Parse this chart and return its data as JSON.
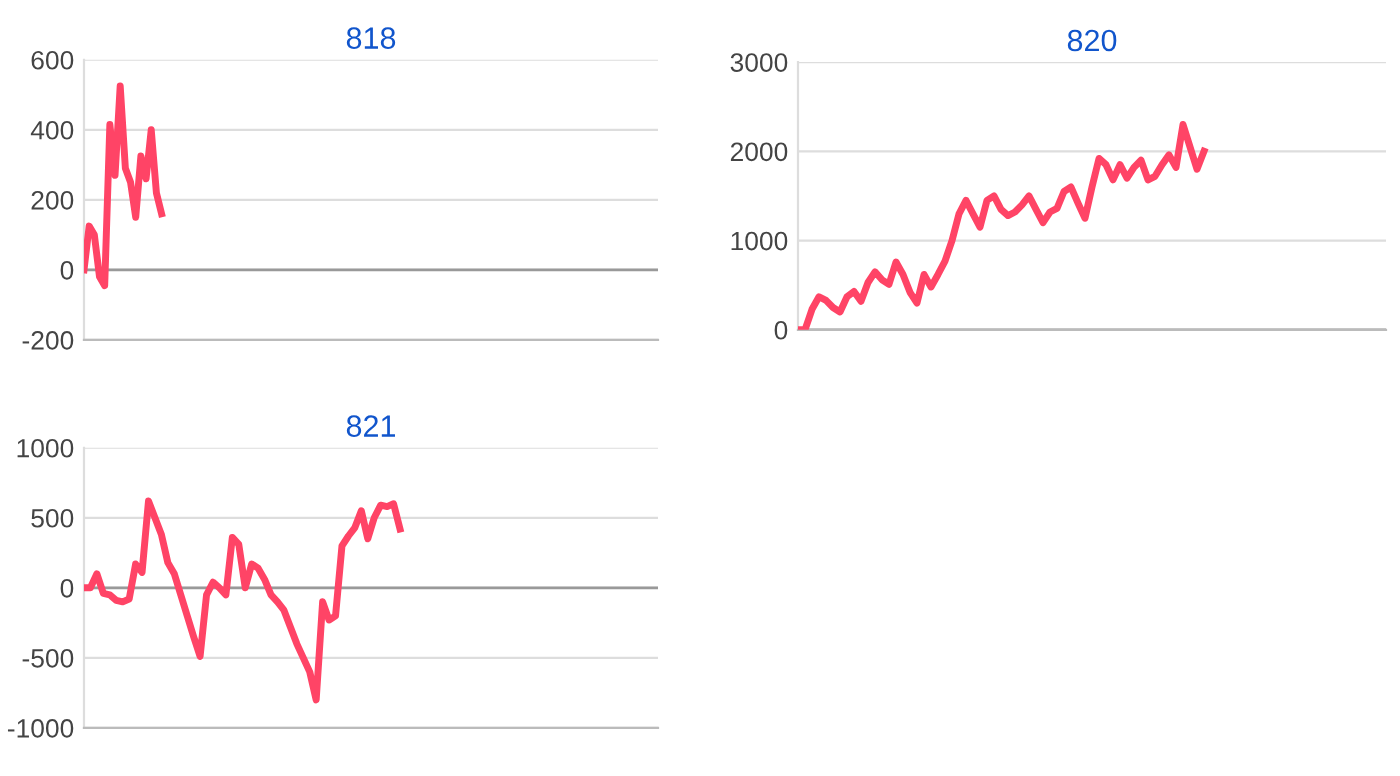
{
  "chart_data": [
    {
      "type": "line",
      "title": "818",
      "tick_labels": "y",
      "grid": "y",
      "categories": [
        null,
        null,
        null,
        null,
        null,
        null,
        null,
        null,
        null,
        null,
        null,
        null,
        null,
        null,
        null,
        null,
        null,
        null,
        null,
        null,
        null,
        null,
        null,
        null,
        null,
        null,
        null,
        null,
        null,
        null,
        null,
        null,
        null,
        null,
        null,
        null,
        null,
        null,
        null,
        null,
        null,
        null,
        null,
        null,
        null,
        null,
        null,
        null,
        null,
        null,
        null,
        null,
        null,
        null,
        null,
        null,
        null,
        null,
        null,
        null,
        null,
        null,
        null,
        null,
        null,
        null,
        null,
        null,
        null,
        null,
        null,
        null,
        null,
        null,
        null,
        null,
        null,
        null,
        null,
        null,
        null,
        null,
        null,
        null,
        null,
        null,
        null,
        null,
        null,
        null,
        null,
        null,
        null,
        null,
        null,
        null,
        null,
        null,
        null,
        null,
        null,
        null,
        null,
        null,
        null,
        null,
        null,
        null,
        null,
        null,
        null,
        null
      ],
      "series": [
        {
          "color": "#ff4466",
          "values": [
            0,
            125,
            100,
            -20,
            -45,
            415,
            270,
            525,
            290,
            250,
            150,
            325,
            260,
            400,
            220,
            160,
            null,
            null,
            null,
            null,
            null,
            null,
            null,
            null,
            null,
            null,
            null,
            null,
            null,
            null,
            null,
            null,
            null,
            null,
            null,
            null,
            null,
            null,
            null,
            null,
            null,
            null,
            null,
            null,
            null,
            null,
            null,
            null,
            null,
            null,
            null,
            null,
            null,
            null,
            null,
            null,
            null,
            null,
            null,
            null,
            null,
            null,
            null,
            null,
            null,
            null,
            null,
            null,
            null,
            null,
            null,
            null,
            null,
            null,
            null,
            null,
            null,
            null,
            null,
            null,
            null,
            null,
            null,
            null,
            null,
            null,
            null,
            null,
            null,
            null,
            null,
            null,
            null,
            null,
            null,
            null,
            null,
            null,
            null,
            null,
            null,
            null,
            null,
            null,
            null,
            null,
            null,
            null,
            null,
            null,
            null,
            null
          ]
        }
      ],
      "ylim": [
        -200,
        600
      ],
      "yticks": [
        -200,
        0,
        200,
        400,
        600
      ],
      "ref_lines": [
        {
          "axis": "y",
          "value": 0,
          "color": "#999999"
        }
      ]
    },
    {
      "type": "line",
      "title": "820",
      "tick_labels": "y",
      "grid": "y",
      "categories": [
        null,
        null,
        null,
        null,
        null,
        null,
        null,
        null,
        null,
        null,
        null,
        null,
        null,
        null,
        null,
        null,
        null,
        null,
        null,
        null,
        null,
        null,
        null,
        null,
        null,
        null,
        null,
        null,
        null,
        null,
        null,
        null,
        null,
        null,
        null,
        null,
        null,
        null,
        null,
        null,
        null,
        null,
        null,
        null,
        null,
        null,
        null,
        null,
        null,
        null,
        null,
        null,
        null,
        null,
        null,
        null,
        null,
        null,
        null,
        null,
        null,
        null,
        null,
        null,
        null,
        null,
        null,
        null,
        null,
        null,
        null,
        null,
        null,
        null,
        null,
        null,
        null,
        null,
        null,
        null,
        null,
        null,
        null,
        null,
        null
      ],
      "series": [
        {
          "color": "#ff4466",
          "values": [
            0,
            0,
            230,
            370,
            330,
            250,
            200,
            370,
            430,
            320,
            530,
            650,
            560,
            510,
            760,
            620,
            420,
            300,
            620,
            480,
            620,
            770,
            1000,
            1300,
            1450,
            1300,
            1150,
            1450,
            1500,
            1350,
            1280,
            1320,
            1400,
            1500,
            1350,
            1200,
            1320,
            1360,
            1550,
            1600,
            1420,
            1250,
            1600,
            1920,
            1850,
            1680,
            1850,
            1700,
            1820,
            1900,
            1680,
            1720,
            1850,
            1960,
            1820,
            2300,
            2050,
            1800,
            2000,
            null,
            null,
            null,
            null,
            null,
            null,
            null,
            null,
            null,
            null,
            null,
            null,
            null,
            null,
            null,
            null,
            null,
            null,
            null,
            null,
            null,
            null,
            null,
            null,
            null,
            null
          ]
        }
      ],
      "ylim": [
        0,
        3000
      ],
      "yticks": [
        0,
        1000,
        2000,
        3000
      ],
      "ref_lines": [
        {
          "axis": "y",
          "value": 0,
          "color": "#999999"
        }
      ]
    },
    {
      "type": "line",
      "title": "821",
      "tick_labels": "y",
      "grid": "y",
      "categories": [
        null,
        null,
        null,
        null,
        null,
        null,
        null,
        null,
        null,
        null,
        null,
        null,
        null,
        null,
        null,
        null,
        null,
        null,
        null,
        null,
        null,
        null,
        null,
        null,
        null,
        null,
        null,
        null,
        null,
        null,
        null,
        null,
        null,
        null,
        null,
        null,
        null,
        null,
        null,
        null,
        null,
        null,
        null,
        null,
        null,
        null,
        null,
        null,
        null,
        null,
        null,
        null,
        null,
        null,
        null,
        null,
        null,
        null,
        null,
        null,
        null,
        null,
        null,
        null,
        null,
        null,
        null,
        null,
        null,
        null,
        null,
        null,
        null,
        null,
        null,
        null,
        null,
        null,
        null,
        null,
        null,
        null,
        null,
        null,
        null,
        null,
        null,
        null,
        null,
        null
      ],
      "series": [
        {
          "color": "#ff4466",
          "values": [
            0,
            0,
            100,
            -40,
            -50,
            -90,
            -100,
            -80,
            170,
            110,
            620,
            500,
            380,
            180,
            100,
            -50,
            -200,
            -350,
            -490,
            -50,
            40,
            0,
            -50,
            360,
            310,
            0,
            170,
            140,
            60,
            -50,
            -100,
            -160,
            -280,
            -400,
            -500,
            -600,
            -800,
            -100,
            -230,
            -200,
            300,
            370,
            430,
            550,
            350,
            500,
            590,
            580,
            600,
            420,
            null,
            null,
            null,
            null,
            null,
            null,
            null,
            null,
            null,
            null,
            null,
            null,
            null,
            null,
            null,
            null,
            null,
            null,
            null,
            null,
            null,
            null,
            null,
            null,
            null,
            null,
            null,
            null,
            null,
            null,
            null,
            null,
            null,
            null,
            null,
            null,
            null,
            null,
            null,
            null
          ]
        }
      ],
      "ylim": [
        -1000,
        1000
      ],
      "yticks": [
        -1000,
        -500,
        0,
        500,
        1000
      ],
      "ref_lines": [
        {
          "axis": "y",
          "value": 0,
          "color": "#999999"
        }
      ]
    }
  ]
}
